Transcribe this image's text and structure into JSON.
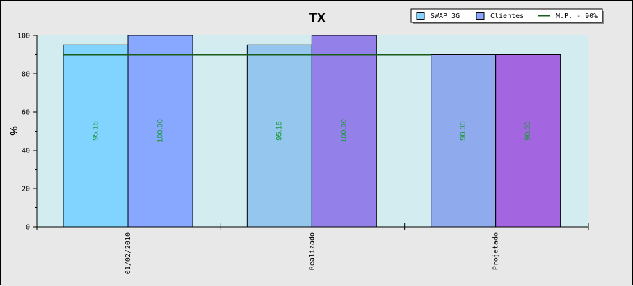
{
  "chart_data": {
    "type": "bar",
    "title": "TX",
    "xlabel": "",
    "ylabel": "%",
    "ylim": [
      0,
      100
    ],
    "yticks": [
      0,
      20,
      40,
      60,
      80,
      100
    ],
    "categories": [
      "01/02/2010",
      "Realizado",
      "Projetado"
    ],
    "series": [
      {
        "name": "SWAP 3G",
        "values": [
          95.16,
          95.16,
          90.0
        ],
        "labels": [
          "95.16",
          "95.16",
          "90.00"
        ],
        "colors": [
          "#80d4ff",
          "#94c6ee",
          "#90aaee"
        ]
      },
      {
        "name": "Clientes",
        "values": [
          100.0,
          100.0,
          90.0
        ],
        "labels": [
          "100.00",
          "100.00",
          "90.00"
        ],
        "colors": [
          "#88a8ff",
          "#9380e8",
          "#a366e0"
        ]
      }
    ],
    "reference_line": {
      "name": "M.P. - 90%",
      "value": 90,
      "color": "#1a5c1a"
    },
    "legend": {
      "position": "top-right",
      "items": [
        {
          "label": "SWAP 3G",
          "color": "#80d4ff",
          "kind": "box"
        },
        {
          "label": "Clientes",
          "color": "#88a8ff",
          "kind": "box"
        },
        {
          "label": "M.P. - 90%",
          "color": "#1a5c1a",
          "kind": "line"
        }
      ]
    },
    "plot_background": "#d2ecf0",
    "grid": false
  }
}
